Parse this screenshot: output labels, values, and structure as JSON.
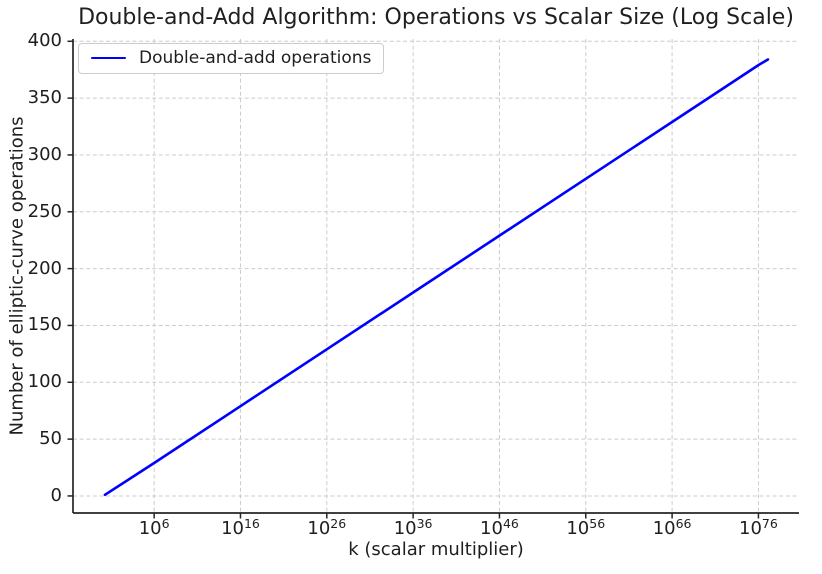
{
  "chart_data": {
    "type": "line",
    "title": "Double-and-Add Algorithm: Operations vs Scalar Size (Log Scale)",
    "xlabel": "k (scalar multiplier)",
    "ylabel": "Number of elliptic-curve operations",
    "x_scale": "log10",
    "xlim_log10": [
      -3.4,
      80.7
    ],
    "ylim": [
      -15,
      402
    ],
    "x_ticks": [
      {
        "log10": 6,
        "base": "10",
        "exponent": "6"
      },
      {
        "log10": 16,
        "base": "10",
        "exponent": "16"
      },
      {
        "log10": 26,
        "base": "10",
        "exponent": "26"
      },
      {
        "log10": 36,
        "base": "10",
        "exponent": "36"
      },
      {
        "log10": 46,
        "base": "10",
        "exponent": "46"
      },
      {
        "log10": 56,
        "base": "10",
        "exponent": "56"
      },
      {
        "log10": 66,
        "base": "10",
        "exponent": "66"
      },
      {
        "log10": 76,
        "base": "10",
        "exponent": "76"
      }
    ],
    "y_ticks": [
      0,
      50,
      100,
      150,
      200,
      250,
      300,
      350,
      400
    ],
    "grid": {
      "show": true,
      "color": "#cccccc",
      "dash": "4 2.6"
    },
    "colors": {
      "line": "#0000ff",
      "spine": "#262626",
      "text": "#1f1f1f"
    },
    "legend": {
      "position": "upper-left",
      "entries": [
        {
          "label": "Double-and-add operations",
          "color": "#0000ff"
        }
      ]
    },
    "series": [
      {
        "name": "Double-and-add operations",
        "color": "#0000ff",
        "line_width": 2.6,
        "points": [
          {
            "log10_k": 0.3,
            "operations": 1
          },
          {
            "log10_k": 6,
            "operations": 29
          },
          {
            "log10_k": 16,
            "operations": 79
          },
          {
            "log10_k": 26,
            "operations": 129
          },
          {
            "log10_k": 36,
            "operations": 179
          },
          {
            "log10_k": 46,
            "operations": 229
          },
          {
            "log10_k": 56,
            "operations": 279
          },
          {
            "log10_k": 66,
            "operations": 329
          },
          {
            "log10_k": 76,
            "operations": 379
          },
          {
            "log10_k": 77.1,
            "operations": 384
          }
        ]
      }
    ]
  }
}
